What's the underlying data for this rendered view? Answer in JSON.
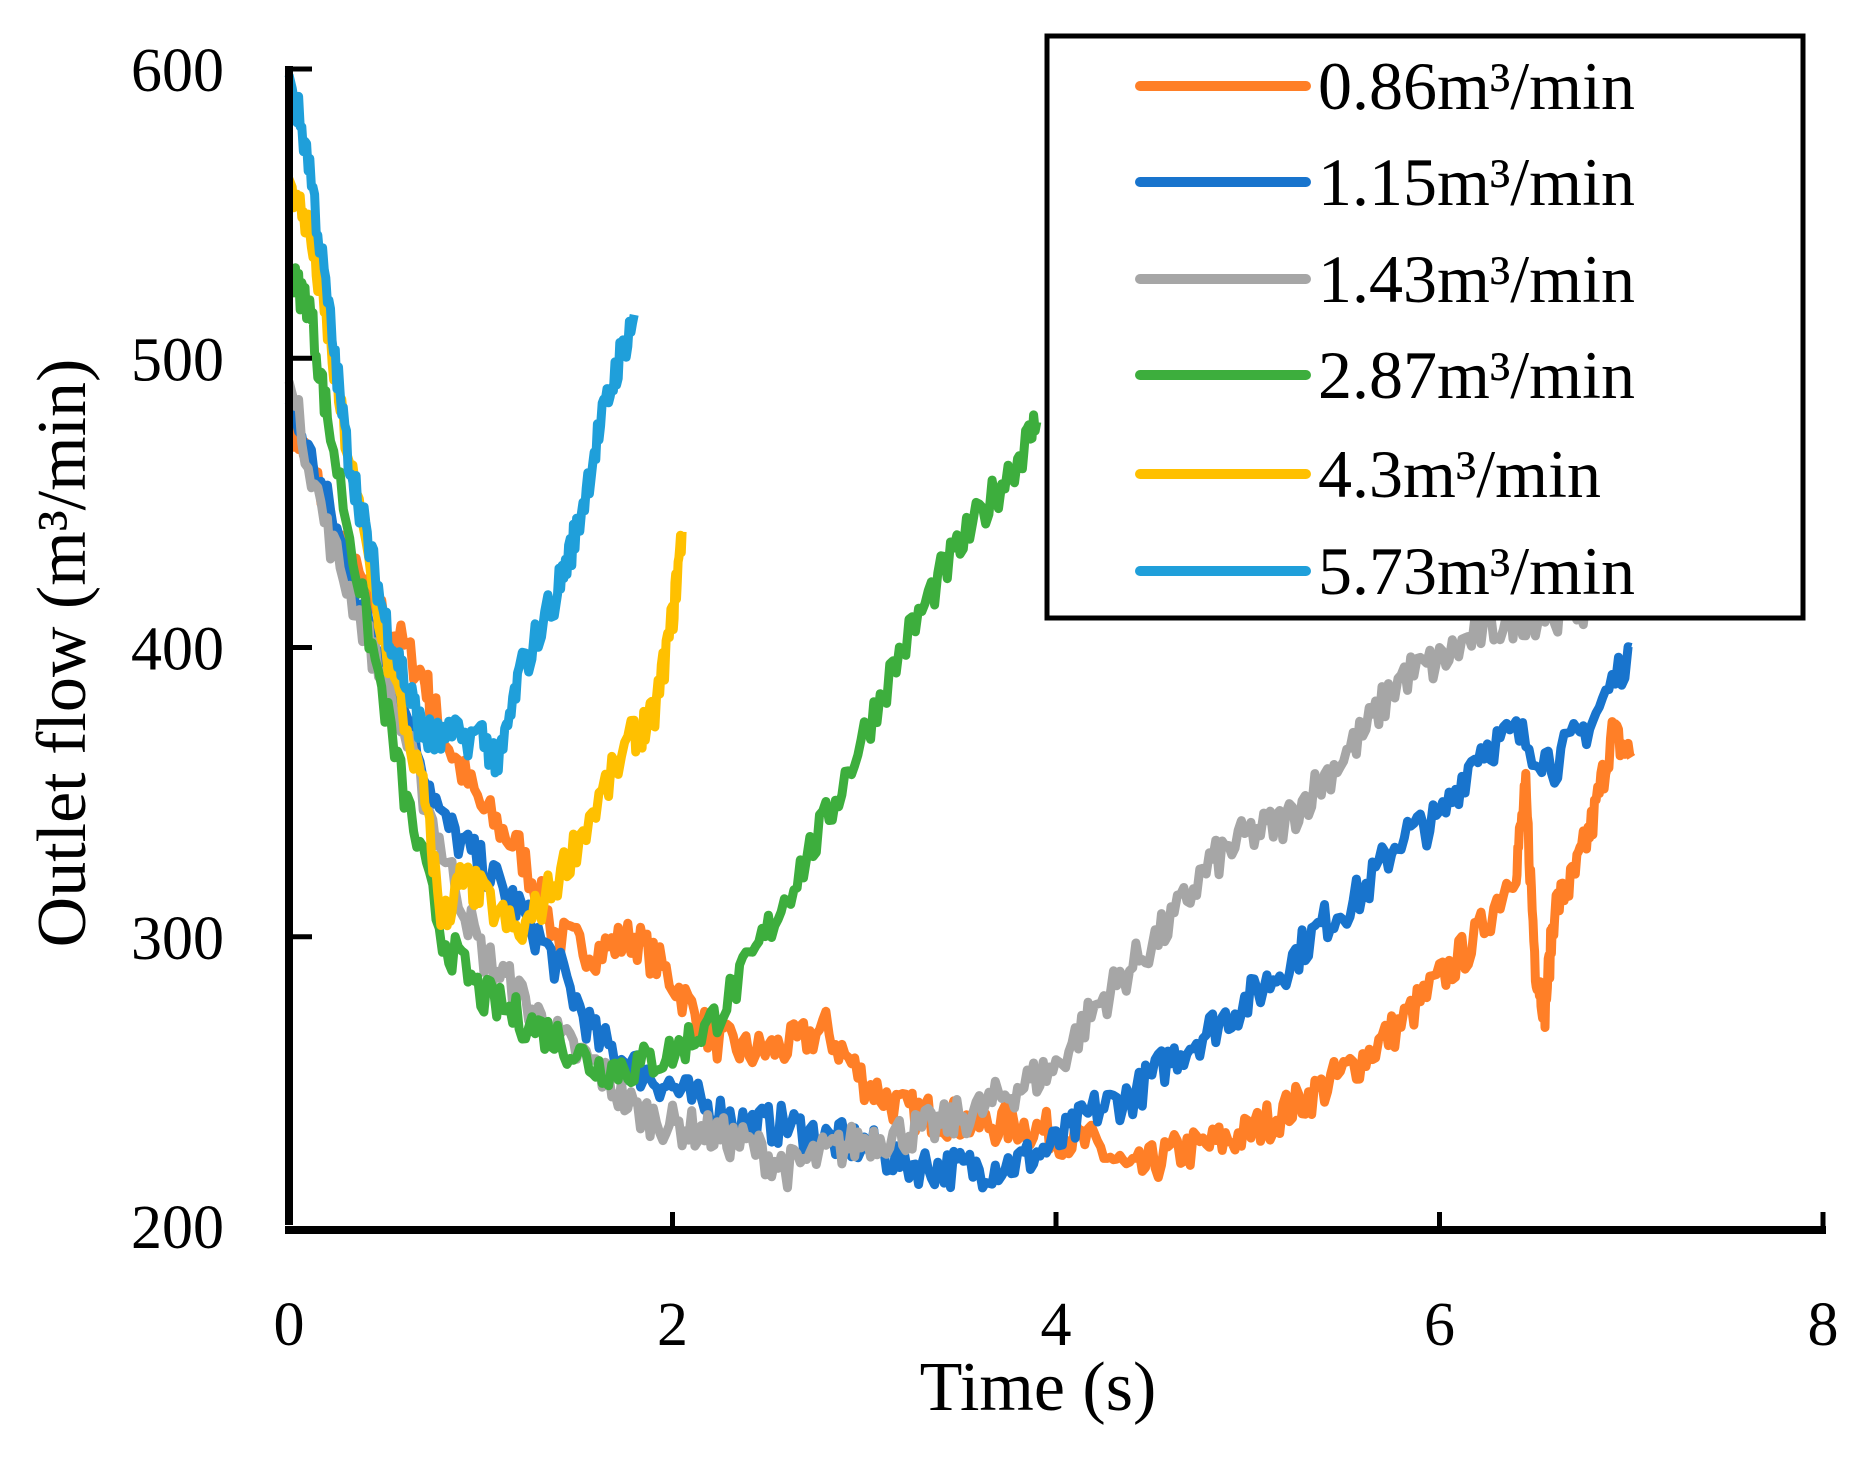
{
  "chart_data": {
    "type": "line",
    "title": "",
    "xlabel": "Time (s)",
    "ylabel": "Outlet flow (m³/min)",
    "xlim": [
      0,
      8
    ],
    "ylim": [
      200,
      600
    ],
    "xticks": [
      "0",
      "2",
      "4",
      "6",
      "8"
    ],
    "yticks": [
      "200",
      "300",
      "400",
      "500",
      "600"
    ],
    "xtick_values": [
      0,
      2,
      4,
      6,
      8
    ],
    "ytick_values": [
      200,
      300,
      400,
      500,
      600
    ],
    "grid": false,
    "legend_position": "top-right",
    "series": [
      {
        "name": "0.86m³/min",
        "color": "#FF7F27",
        "x": [
          0,
          0.1,
          0.3,
          0.5,
          0.7,
          0.8,
          1.0,
          1.2,
          1.4,
          1.6,
          1.8,
          2.0,
          2.2,
          2.4,
          2.6,
          2.8,
          3.0,
          3.2,
          3.4,
          3.6,
          3.8,
          4.0,
          4.2,
          4.4,
          4.6,
          4.8,
          5.0,
          5.2,
          5.4,
          5.6,
          5.8,
          6.0,
          6.2,
          6.4,
          6.45,
          6.5,
          6.55,
          6.6,
          6.7,
          6.8,
          6.9,
          7.0
        ],
        "y": [
          480,
          465,
          430,
          410,
          390,
          370,
          345,
          330,
          300,
          295,
          300,
          285,
          265,
          260,
          262,
          268,
          250,
          240,
          238,
          235,
          235,
          232,
          228,
          218,
          225,
          228,
          232,
          240,
          248,
          258,
          270,
          285,
          300,
          325,
          350,
          290,
          275,
          310,
          320,
          340,
          370,
          362
        ]
      },
      {
        "name": "1.15m³/min",
        "color": "#1874CD",
        "x": [
          0,
          0.2,
          0.4,
          0.6,
          0.8,
          1.0,
          1.2,
          1.4,
          1.6,
          1.8,
          2.0,
          2.2,
          2.4,
          2.6,
          2.8,
          3.0,
          3.2,
          3.4,
          3.6,
          3.8,
          4.0,
          4.2,
          4.4,
          4.6,
          4.8,
          5.0,
          5.2,
          5.4,
          5.6,
          5.8,
          6.0,
          6.2,
          6.4,
          6.6,
          6.8,
          7.0
        ],
        "y": [
          485,
          450,
          410,
          380,
          340,
          325,
          310,
          290,
          265,
          255,
          248,
          240,
          235,
          235,
          230,
          228,
          222,
          220,
          220,
          222,
          228,
          240,
          245,
          258,
          268,
          278,
          290,
          305,
          315,
          335,
          340,
          365,
          370,
          360,
          375,
          400
        ]
      },
      {
        "name": "1.43m³/min",
        "color": "#A6A6A6",
        "x": [
          0,
          0.2,
          0.4,
          0.6,
          0.8,
          1.0,
          1.2,
          1.4,
          1.6,
          1.8,
          2.0,
          2.2,
          2.4,
          2.6,
          2.8,
          3.0,
          3.2,
          3.4,
          3.6,
          3.8,
          4.0,
          4.2,
          4.4,
          4.6,
          4.8,
          5.0,
          5.2,
          5.4,
          5.6,
          5.8,
          6.0,
          6.2,
          6.4,
          6.6,
          6.8,
          7.0
        ],
        "y": [
          492,
          440,
          405,
          370,
          330,
          295,
          280,
          265,
          255,
          240,
          235,
          232,
          228,
          220,
          225,
          230,
          232,
          235,
          240,
          248,
          255,
          275,
          290,
          305,
          325,
          335,
          340,
          355,
          370,
          390,
          395,
          405,
          410,
          412,
          415,
          420
        ]
      },
      {
        "name": "2.87m³/min",
        "color": "#3DAE3D",
        "x": [
          0,
          0.1,
          0.2,
          0.4,
          0.6,
          0.8,
          1.0,
          1.2,
          1.4,
          1.6,
          1.8,
          2.0,
          2.2,
          2.4,
          2.6,
          2.8,
          3.0,
          3.2,
          3.4,
          3.6,
          3.8,
          3.9
        ],
        "y": [
          528,
          520,
          480,
          410,
          350,
          300,
          280,
          272,
          265,
          255,
          255,
          260,
          270,
          290,
          315,
          340,
          370,
          400,
          425,
          445,
          465,
          478
        ]
      },
      {
        "name": "4.3m³/min",
        "color": "#FFC000",
        "x": [
          0,
          0.1,
          0.2,
          0.3,
          0.5,
          0.7,
          0.8,
          0.9,
          1.0,
          1.2,
          1.4,
          1.6,
          1.8,
          1.9,
          2.0,
          2.05
        ],
        "y": [
          562,
          545,
          510,
          470,
          400,
          350,
          305,
          320,
          315,
          300,
          320,
          345,
          370,
          375,
          410,
          440
        ]
      },
      {
        "name": "5.73m³/min",
        "color": "#1F9FDA",
        "x": [
          0,
          0.1,
          0.2,
          0.3,
          0.4,
          0.5,
          0.6,
          0.7,
          0.8,
          1.0,
          1.1,
          1.2,
          1.4,
          1.5,
          1.6,
          1.7,
          1.8
        ],
        "y": [
          598,
          570,
          520,
          470,
          440,
          410,
          390,
          370,
          368,
          370,
          360,
          390,
          420,
          440,
          470,
          495,
          515
        ]
      }
    ]
  }
}
